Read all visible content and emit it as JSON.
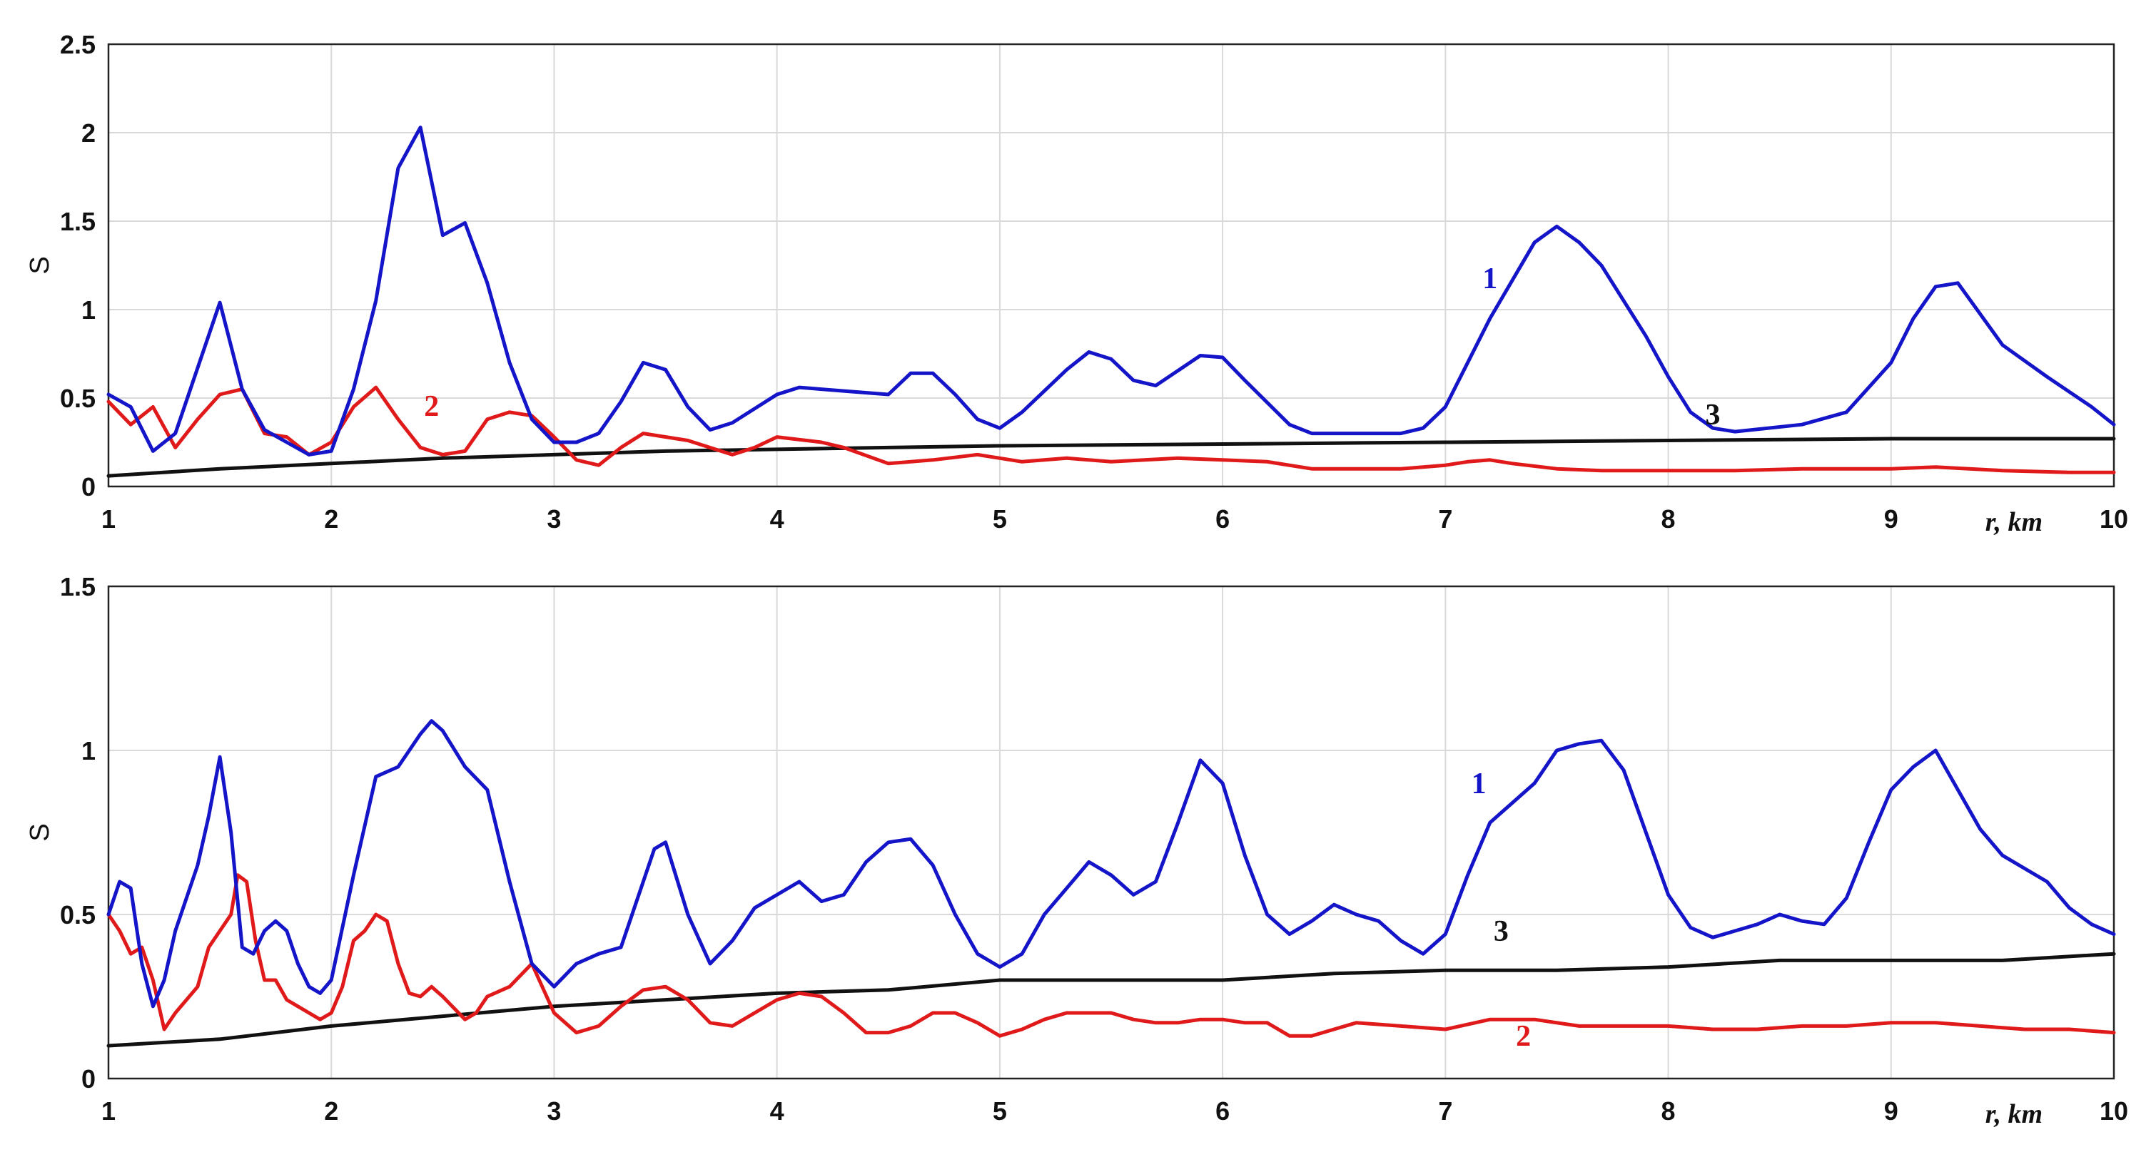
{
  "chart_data": [
    {
      "type": "line",
      "xlabel": "r, km",
      "ylabel": "S",
      "xlim": [
        1,
        10
      ],
      "ylim": [
        0,
        2.5
      ],
      "xticks": [
        "1",
        "2",
        "3",
        "4",
        "5",
        "6",
        "7",
        "8",
        "9",
        "10"
      ],
      "yticks": [
        "0",
        "0.5",
        "1",
        "1.5",
        "2",
        "2.5"
      ],
      "grid": true,
      "series": [
        {
          "name": "1",
          "color": "#1414c8",
          "label_at": [
            7.2,
            1.12
          ],
          "x": [
            1.0,
            1.1,
            1.2,
            1.3,
            1.5,
            1.6,
            1.7,
            1.8,
            1.9,
            2.0,
            2.1,
            2.2,
            2.3,
            2.4,
            2.5,
            2.6,
            2.7,
            2.8,
            2.9,
            3.0,
            3.1,
            3.2,
            3.3,
            3.4,
            3.5,
            3.6,
            3.7,
            3.8,
            4.0,
            4.1,
            4.3,
            4.5,
            4.6,
            4.7,
            4.8,
            4.9,
            5.0,
            5.1,
            5.3,
            5.4,
            5.5,
            5.6,
            5.7,
            5.9,
            6.0,
            6.1,
            6.3,
            6.4,
            6.6,
            6.8,
            6.9,
            7.0,
            7.2,
            7.4,
            7.5,
            7.6,
            7.7,
            7.9,
            8.0,
            8.1,
            8.2,
            8.3,
            8.6,
            8.8,
            9.0,
            9.1,
            9.2,
            9.3,
            9.5,
            9.7,
            9.9,
            10.0
          ],
          "y": [
            0.52,
            0.45,
            0.2,
            0.3,
            1.04,
            0.55,
            0.32,
            0.25,
            0.18,
            0.2,
            0.55,
            1.05,
            1.8,
            2.03,
            1.42,
            1.49,
            1.15,
            0.7,
            0.38,
            0.25,
            0.25,
            0.3,
            0.48,
            0.7,
            0.66,
            0.45,
            0.32,
            0.36,
            0.52,
            0.56,
            0.54,
            0.52,
            0.64,
            0.64,
            0.52,
            0.38,
            0.33,
            0.42,
            0.66,
            0.76,
            0.72,
            0.6,
            0.57,
            0.74,
            0.73,
            0.6,
            0.35,
            0.3,
            0.3,
            0.3,
            0.33,
            0.45,
            0.95,
            1.38,
            1.47,
            1.38,
            1.25,
            0.85,
            0.62,
            0.42,
            0.33,
            0.31,
            0.35,
            0.42,
            0.7,
            0.95,
            1.13,
            1.15,
            0.8,
            0.62,
            0.45,
            0.35
          ]
        },
        {
          "name": "2",
          "color": "#e01a1a",
          "label_at": [
            2.45,
            0.4
          ],
          "x": [
            1.0,
            1.1,
            1.2,
            1.3,
            1.4,
            1.5,
            1.6,
            1.7,
            1.8,
            1.9,
            2.0,
            2.1,
            2.2,
            2.3,
            2.4,
            2.5,
            2.6,
            2.7,
            2.8,
            2.9,
            3.0,
            3.1,
            3.2,
            3.3,
            3.4,
            3.6,
            3.8,
            3.9,
            4.0,
            4.2,
            4.3,
            4.5,
            4.7,
            4.9,
            5.0,
            5.1,
            5.3,
            5.5,
            5.8,
            6.0,
            6.2,
            6.4,
            6.6,
            6.8,
            7.0,
            7.1,
            7.2,
            7.3,
            7.5,
            7.7,
            8.0,
            8.3,
            8.6,
            9.0,
            9.2,
            9.5,
            9.8,
            10.0
          ],
          "y": [
            0.48,
            0.35,
            0.45,
            0.22,
            0.38,
            0.52,
            0.55,
            0.3,
            0.28,
            0.18,
            0.25,
            0.45,
            0.56,
            0.38,
            0.22,
            0.18,
            0.2,
            0.38,
            0.42,
            0.4,
            0.28,
            0.15,
            0.12,
            0.22,
            0.3,
            0.26,
            0.18,
            0.22,
            0.28,
            0.25,
            0.22,
            0.13,
            0.15,
            0.18,
            0.16,
            0.14,
            0.16,
            0.14,
            0.16,
            0.15,
            0.14,
            0.1,
            0.1,
            0.1,
            0.12,
            0.14,
            0.15,
            0.13,
            0.1,
            0.09,
            0.09,
            0.09,
            0.1,
            0.1,
            0.11,
            0.09,
            0.08,
            0.08
          ]
        },
        {
          "name": "3",
          "color": "#111111",
          "label_at": [
            8.2,
            0.35
          ],
          "x": [
            1.0,
            1.5,
            2.0,
            2.5,
            3.0,
            3.5,
            4.0,
            4.5,
            5.0,
            5.5,
            6.0,
            6.5,
            7.0,
            7.5,
            8.0,
            8.5,
            9.0,
            9.5,
            10.0
          ],
          "y": [
            0.06,
            0.1,
            0.13,
            0.16,
            0.18,
            0.2,
            0.21,
            0.22,
            0.23,
            0.235,
            0.24,
            0.245,
            0.25,
            0.255,
            0.26,
            0.265,
            0.27,
            0.27,
            0.27
          ]
        }
      ]
    },
    {
      "type": "line",
      "xlabel": "r, km",
      "ylabel": "S",
      "xlim": [
        1,
        10
      ],
      "ylim": [
        0,
        1.5
      ],
      "xticks": [
        "1",
        "2",
        "3",
        "4",
        "5",
        "6",
        "7",
        "8",
        "9",
        "10"
      ],
      "yticks": [
        "0",
        "0.5",
        "1",
        "1.5"
      ],
      "grid": true,
      "series": [
        {
          "name": "1",
          "color": "#1414c8",
          "label_at": [
            7.15,
            0.87
          ],
          "x": [
            1.0,
            1.05,
            1.1,
            1.15,
            1.2,
            1.25,
            1.3,
            1.4,
            1.45,
            1.5,
            1.55,
            1.6,
            1.65,
            1.7,
            1.75,
            1.8,
            1.85,
            1.9,
            1.95,
            2.0,
            2.1,
            2.2,
            2.3,
            2.4,
            2.45,
            2.5,
            2.6,
            2.7,
            2.8,
            2.9,
            3.0,
            3.1,
            3.2,
            3.3,
            3.4,
            3.45,
            3.5,
            3.6,
            3.7,
            3.8,
            3.9,
            4.0,
            4.1,
            4.2,
            4.3,
            4.4,
            4.5,
            4.6,
            4.7,
            4.8,
            4.9,
            5.0,
            5.1,
            5.2,
            5.3,
            5.4,
            5.5,
            5.6,
            5.7,
            5.8,
            5.9,
            6.0,
            6.1,
            6.2,
            6.3,
            6.4,
            6.5,
            6.6,
            6.7,
            6.8,
            6.9,
            7.0,
            7.1,
            7.2,
            7.3,
            7.4,
            7.5,
            7.6,
            7.7,
            7.8,
            7.9,
            8.0,
            8.1,
            8.2,
            8.3,
            8.4,
            8.5,
            8.6,
            8.7,
            8.8,
            8.9,
            9.0,
            9.1,
            9.2,
            9.3,
            9.4,
            9.5,
            9.6,
            9.7,
            9.8,
            9.9,
            10.0
          ],
          "y": [
            0.5,
            0.6,
            0.58,
            0.35,
            0.22,
            0.3,
            0.45,
            0.65,
            0.8,
            0.98,
            0.75,
            0.4,
            0.38,
            0.45,
            0.48,
            0.45,
            0.35,
            0.28,
            0.26,
            0.3,
            0.62,
            0.92,
            0.95,
            1.05,
            1.09,
            1.06,
            0.95,
            0.88,
            0.6,
            0.35,
            0.28,
            0.35,
            0.38,
            0.4,
            0.6,
            0.7,
            0.72,
            0.5,
            0.35,
            0.42,
            0.52,
            0.56,
            0.6,
            0.54,
            0.56,
            0.66,
            0.72,
            0.73,
            0.65,
            0.5,
            0.38,
            0.34,
            0.38,
            0.5,
            0.58,
            0.66,
            0.62,
            0.56,
            0.6,
            0.78,
            0.97,
            0.9,
            0.68,
            0.5,
            0.44,
            0.48,
            0.53,
            0.5,
            0.48,
            0.42,
            0.38,
            0.44,
            0.62,
            0.78,
            0.84,
            0.9,
            1.0,
            1.02,
            1.03,
            0.94,
            0.75,
            0.56,
            0.46,
            0.43,
            0.45,
            0.47,
            0.5,
            0.48,
            0.47,
            0.55,
            0.72,
            0.88,
            0.95,
            1.0,
            0.88,
            0.76,
            0.68,
            0.64,
            0.6,
            0.52,
            0.47,
            0.44
          ]
        },
        {
          "name": "2",
          "color": "#e01a1a",
          "label_at": [
            7.35,
            0.1
          ],
          "x": [
            1.0,
            1.05,
            1.1,
            1.15,
            1.2,
            1.25,
            1.3,
            1.35,
            1.4,
            1.45,
            1.5,
            1.55,
            1.58,
            1.62,
            1.66,
            1.7,
            1.75,
            1.8,
            1.85,
            1.9,
            1.95,
            2.0,
            2.05,
            2.1,
            2.15,
            2.2,
            2.25,
            2.3,
            2.35,
            2.4,
            2.45,
            2.5,
            2.6,
            2.65,
            2.7,
            2.8,
            2.9,
            3.0,
            3.1,
            3.2,
            3.3,
            3.4,
            3.5,
            3.6,
            3.7,
            3.8,
            3.9,
            4.0,
            4.1,
            4.2,
            4.3,
            4.4,
            4.5,
            4.6,
            4.7,
            4.8,
            4.9,
            5.0,
            5.1,
            5.2,
            5.3,
            5.4,
            5.5,
            5.6,
            5.7,
            5.8,
            5.9,
            6.0,
            6.1,
            6.2,
            6.3,
            6.4,
            6.5,
            6.6,
            6.8,
            7.0,
            7.2,
            7.4,
            7.6,
            7.8,
            8.0,
            8.2,
            8.4,
            8.6,
            8.8,
            9.0,
            9.2,
            9.4,
            9.6,
            9.8,
            10.0
          ],
          "y": [
            0.5,
            0.45,
            0.38,
            0.4,
            0.3,
            0.15,
            0.2,
            0.24,
            0.28,
            0.4,
            0.45,
            0.5,
            0.62,
            0.6,
            0.42,
            0.3,
            0.3,
            0.24,
            0.22,
            0.2,
            0.18,
            0.2,
            0.28,
            0.42,
            0.45,
            0.5,
            0.48,
            0.35,
            0.26,
            0.25,
            0.28,
            0.25,
            0.18,
            0.2,
            0.25,
            0.28,
            0.35,
            0.2,
            0.14,
            0.16,
            0.22,
            0.27,
            0.28,
            0.24,
            0.17,
            0.16,
            0.2,
            0.24,
            0.26,
            0.25,
            0.2,
            0.14,
            0.14,
            0.16,
            0.2,
            0.2,
            0.17,
            0.13,
            0.15,
            0.18,
            0.2,
            0.2,
            0.2,
            0.18,
            0.17,
            0.17,
            0.18,
            0.18,
            0.17,
            0.17,
            0.13,
            0.13,
            0.15,
            0.17,
            0.16,
            0.15,
            0.18,
            0.18,
            0.16,
            0.16,
            0.16,
            0.15,
            0.15,
            0.16,
            0.16,
            0.17,
            0.17,
            0.16,
            0.15,
            0.15,
            0.14
          ]
        },
        {
          "name": "3",
          "color": "#111111",
          "label_at": [
            7.25,
            0.42
          ],
          "x": [
            1.0,
            1.5,
            2.0,
            2.5,
            3.0,
            3.5,
            4.0,
            4.5,
            5.0,
            5.5,
            6.0,
            6.5,
            7.0,
            7.5,
            8.0,
            8.5,
            9.0,
            9.5,
            10.0
          ],
          "y": [
            0.1,
            0.12,
            0.16,
            0.19,
            0.22,
            0.24,
            0.26,
            0.27,
            0.3,
            0.3,
            0.3,
            0.32,
            0.33,
            0.33,
            0.34,
            0.36,
            0.36,
            0.36,
            0.38
          ]
        }
      ]
    }
  ]
}
